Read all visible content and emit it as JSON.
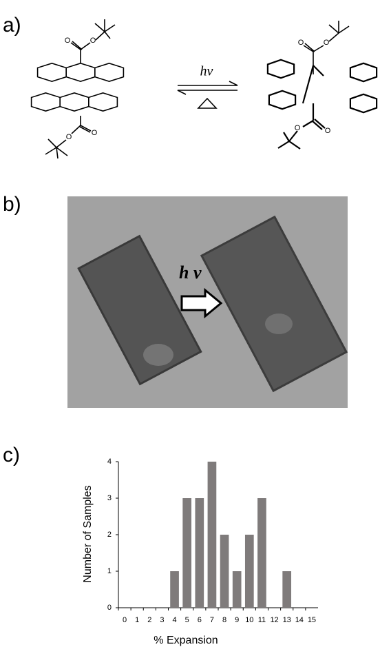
{
  "panels": {
    "a": "a)",
    "b": "b)",
    "c": "c)"
  },
  "reaction": {
    "light": "hν",
    "reactant_atoms": [
      "O",
      "O",
      "O",
      "O"
    ],
    "product_atoms": [
      "O",
      "O",
      "O",
      "O"
    ]
  },
  "micrograph": {
    "label": "h ν"
  },
  "chart_data": {
    "type": "bar",
    "x_label": "% Expansion",
    "y_label": "Number of Samples",
    "categories": [
      "0",
      "1",
      "2",
      "3",
      "4",
      "5",
      "6",
      "7",
      "8",
      "9",
      "10",
      "11",
      "12",
      "13",
      "14",
      "15"
    ],
    "values": [
      0,
      0,
      0,
      0,
      1,
      3,
      3,
      4,
      2,
      1,
      2,
      3,
      0,
      1,
      0,
      0
    ],
    "color": "#7f7b7b",
    "ylim": [
      0,
      4
    ],
    "yticks": [
      0,
      1,
      2,
      3,
      4
    ],
    "grid": false
  }
}
